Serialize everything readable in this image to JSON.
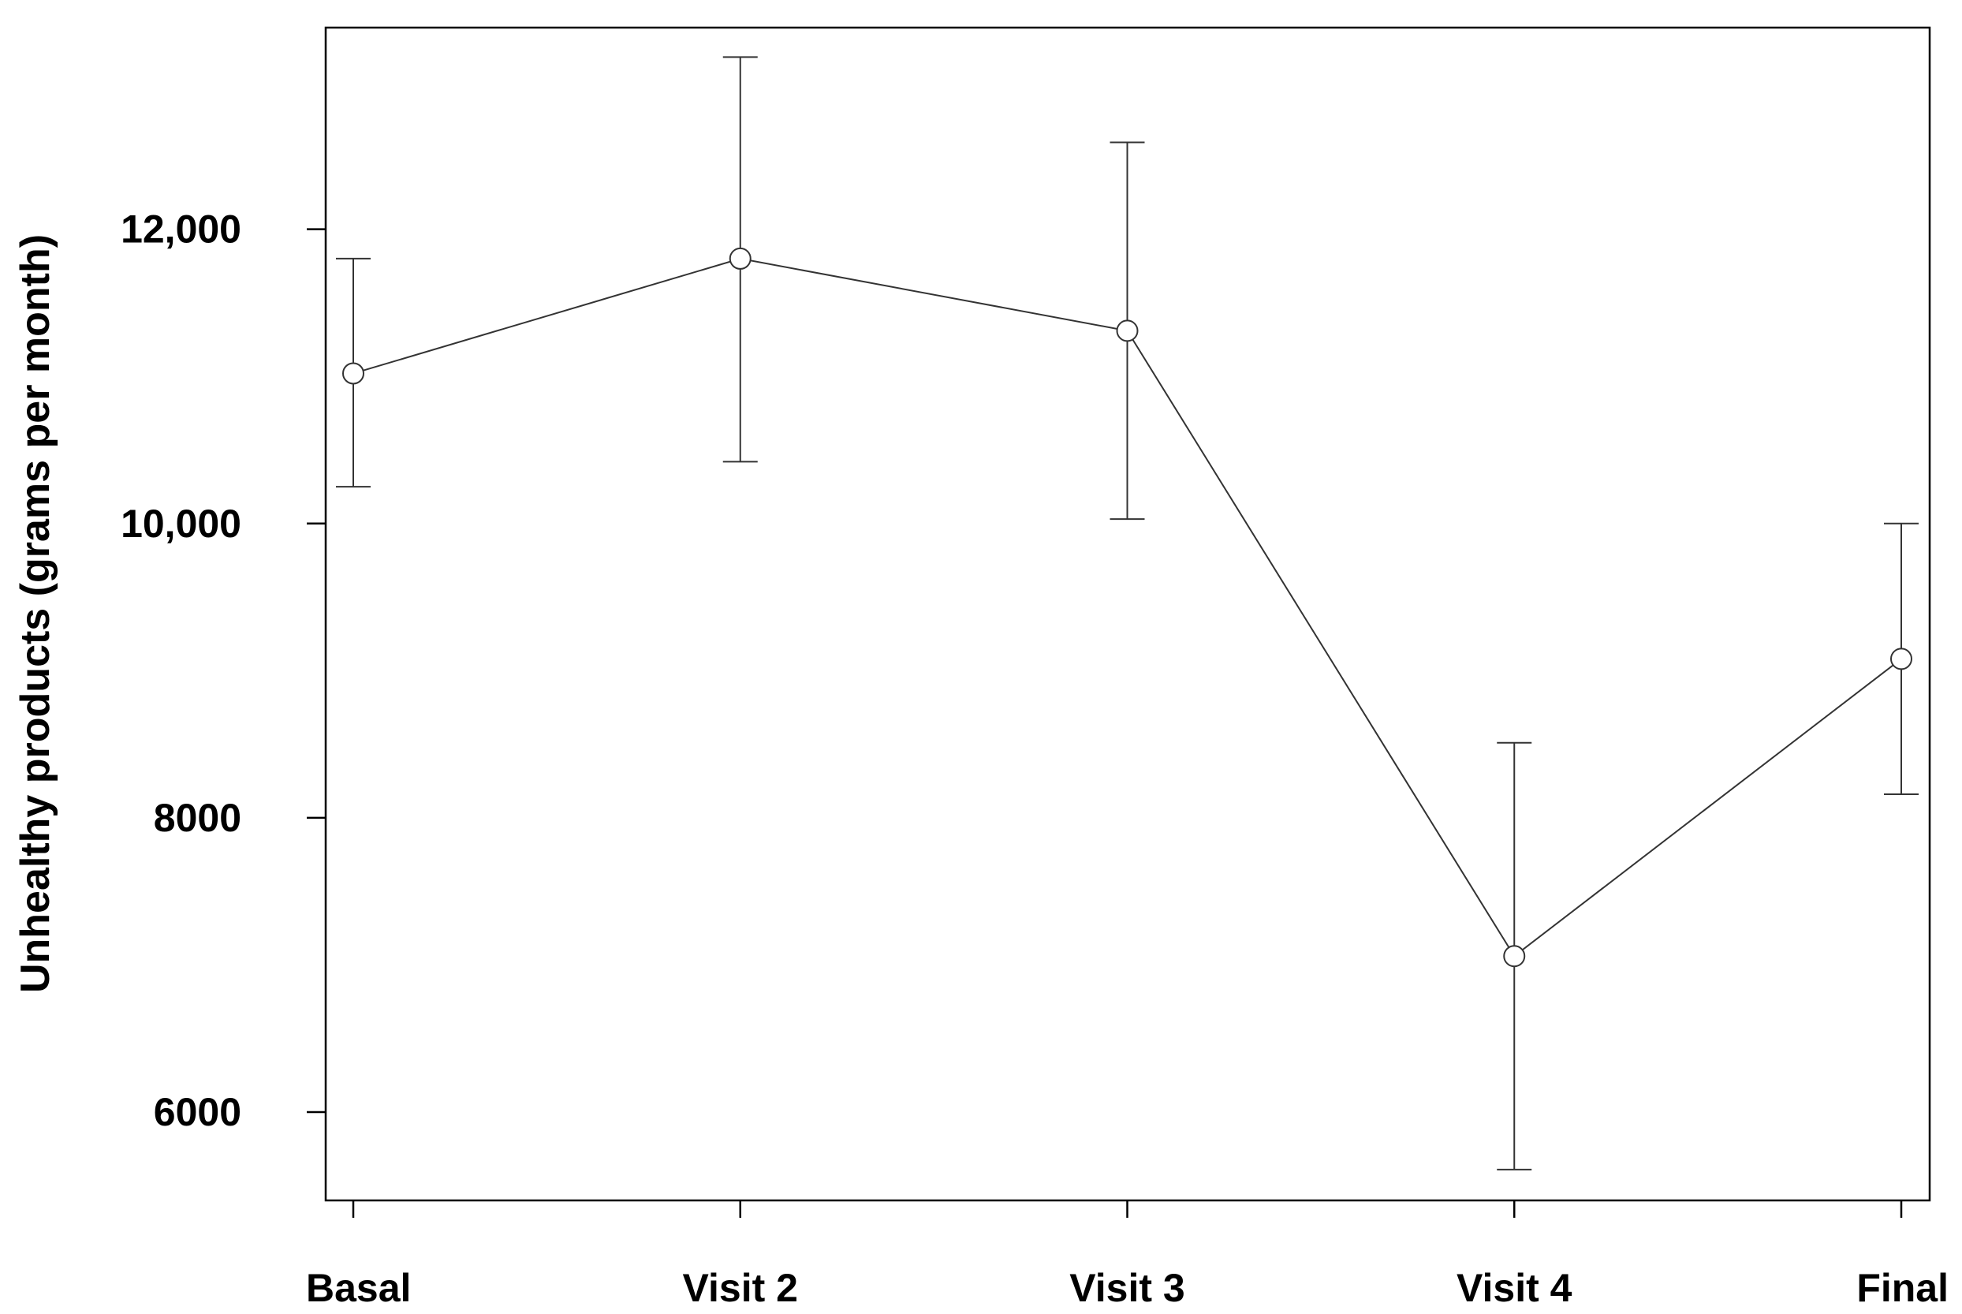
{
  "chart_data": {
    "type": "line",
    "title": "",
    "xlabel": "",
    "ylabel": "Unhealthy products (grams per month)",
    "categories": [
      "Basal",
      "Visit 2",
      "Visit 3",
      "Visit 4",
      "Final"
    ],
    "series": [
      {
        "values": [
          11020,
          11800,
          11310,
          7060,
          9080
        ],
        "error_lower": [
          10250,
          10420,
          10030,
          5610,
          8160
        ],
        "error_upper": [
          11800,
          13170,
          12590,
          8510,
          10000
        ]
      }
    ],
    "yticks": [
      6000,
      8000,
      10000,
      12000
    ],
    "ytick_labels": [
      "6000",
      "8000",
      "10,000",
      "12,000"
    ],
    "ylim": [
      5400,
      13370
    ],
    "grid": false,
    "legend": "none",
    "colors": {
      "line": "#333333",
      "axis": "#000000",
      "marker_fill": "#ffffff"
    }
  }
}
